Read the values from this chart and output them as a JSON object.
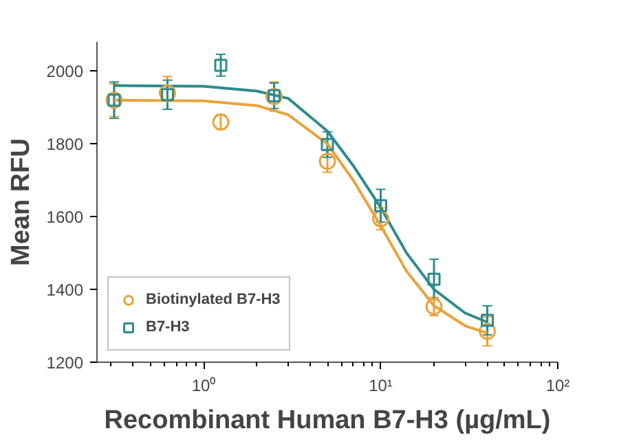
{
  "chart_data": {
    "type": "scatter",
    "xlabel": "Recombinant Human B7-H3 (µg/mL)",
    "ylabel": "Mean RFU",
    "log": "x",
    "grid": false,
    "legend": "bottom left",
    "xlim": [
      0.25,
      100
    ],
    "xticks": [
      {
        "value": 1,
        "label": "10⁰"
      },
      {
        "value": 10,
        "label": "10¹"
      },
      {
        "value": 100,
        "label": "10²"
      }
    ],
    "ylim": [
      1200,
      2080
    ],
    "yticks": [
      1200,
      1400,
      1600,
      1800,
      2000
    ],
    "series": [
      {
        "type": "line",
        "color": "#e8a33c",
        "marker": "none",
        "line_style": "solid",
        "x": [
          0.3125,
          1,
          2,
          3,
          5,
          7,
          10,
          14,
          20,
          30,
          40
        ],
        "values": [
          1920,
          1918,
          1905,
          1880,
          1800,
          1700,
          1575,
          1450,
          1355,
          1300,
          1280
        ]
      },
      {
        "type": "line",
        "color": "#2e8b8b",
        "marker": "none",
        "line_style": "solid",
        "x": [
          0.3125,
          1,
          2,
          3,
          5,
          7,
          10,
          14,
          20,
          30,
          40
        ],
        "values": [
          1960,
          1958,
          1945,
          1925,
          1835,
          1740,
          1625,
          1500,
          1400,
          1335,
          1310
        ]
      },
      {
        "name": "Biotinylated B7-H3",
        "color": "#e8a33c",
        "marker": "circle",
        "x": [
          0.3125,
          0.625,
          1.25,
          2.5,
          5,
          10,
          20,
          40
        ],
        "values": [
          1920,
          1940,
          1860,
          1930,
          1752,
          1594,
          1353,
          1285
        ],
        "errors": [
          45,
          45,
          20,
          40,
          30,
          30,
          25,
          40
        ]
      },
      {
        "name": "B7-H3",
        "color": "#2e8b8b",
        "marker": "square",
        "x": [
          0.3125,
          0.625,
          1.25,
          2.5,
          5,
          10,
          20,
          40
        ],
        "values": [
          1920,
          1935,
          2016,
          1932,
          1798,
          1630,
          1428,
          1315
        ],
        "errors": [
          50,
          40,
          30,
          35,
          35,
          45,
          55,
          40
        ]
      }
    ]
  }
}
